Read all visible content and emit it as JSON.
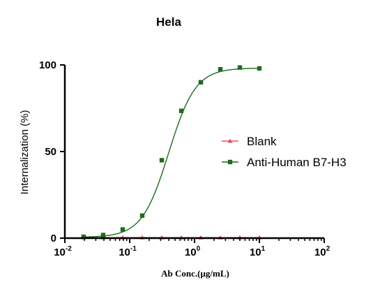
{
  "chart_data": {
    "type": "scatter",
    "title": "Hela",
    "xlabel": "Ab Conc.(μg/mL)",
    "ylabel": "Internalization (%)",
    "xscale": "log",
    "xlim": [
      0.01,
      100
    ],
    "ylim": [
      0,
      100
    ],
    "xticks": [
      {
        "value": 0.01,
        "base": "10",
        "exp": "-2"
      },
      {
        "value": 0.1,
        "base": "10",
        "exp": "-1"
      },
      {
        "value": 1,
        "base": "10",
        "exp": "0"
      },
      {
        "value": 10,
        "base": "10",
        "exp": "1"
      },
      {
        "value": 100,
        "base": "10",
        "exp": "2"
      }
    ],
    "yticks": [
      {
        "value": 0,
        "label": "0"
      },
      {
        "value": 50,
        "label": "50"
      },
      {
        "value": 100,
        "label": "100"
      }
    ],
    "legend_position": "right-middle",
    "grid": false,
    "series": [
      {
        "name": "Blank",
        "color": "#e8505b",
        "marker": "triangle",
        "x": [
          0.0195,
          0.039,
          0.078,
          0.156,
          0.3125,
          0.625,
          1.25,
          2.5,
          5,
          10
        ],
        "y": [
          0.3,
          0.3,
          0.3,
          0.3,
          0.3,
          0.3,
          0.3,
          0.3,
          0.3,
          0.3
        ],
        "fit": {
          "bottom": 0.3,
          "top": 0.3,
          "ec50": 1,
          "hill": 1
        }
      },
      {
        "name": "Anti-Human B7-H3",
        "color": "#1e6b1e",
        "marker": "square",
        "x": [
          0.0195,
          0.039,
          0.078,
          0.156,
          0.3125,
          0.625,
          1.25,
          2.5,
          5,
          10
        ],
        "y": [
          0.8,
          1.8,
          5,
          13,
          45,
          73.5,
          90,
          97.5,
          98.5,
          98
        ],
        "fit": {
          "bottom": 0.5,
          "top": 98.2,
          "ec50": 0.4,
          "hill": 2.1
        }
      }
    ]
  }
}
